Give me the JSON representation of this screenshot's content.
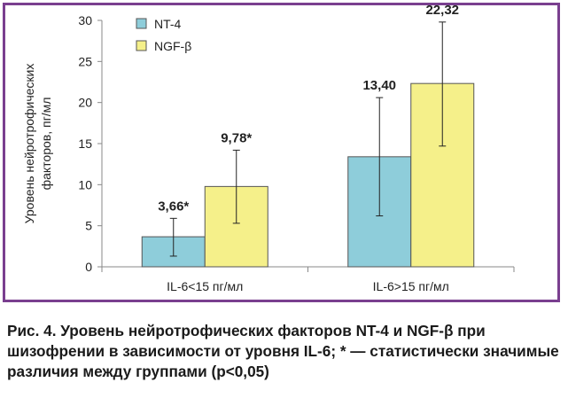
{
  "chart_data": {
    "type": "bar",
    "categories": [
      "IL-6<15 пг/мл",
      "IL-6>15 пг/мл"
    ],
    "series": [
      {
        "name": "NT-4",
        "values": [
          3.66,
          13.4
        ],
        "labels": [
          "3,66*",
          "13,40"
        ],
        "error_low": [
          1.3,
          6.2
        ],
        "error_high": [
          5.9,
          20.6
        ],
        "color": "#8ecdda"
      },
      {
        "name": "NGF-β",
        "values": [
          9.78,
          22.32
        ],
        "labels": [
          "9,78*",
          "22,32"
        ],
        "error_low": [
          5.3,
          14.7
        ],
        "error_high": [
          14.2,
          29.8
        ],
        "color": "#f5f08a"
      }
    ],
    "ylabel": "Уровень нейротрофических факторов, пг/мл",
    "ylabel_lines": [
      "Уровень нейротрофических",
      "факторов, пг/мл"
    ],
    "ylim": [
      0,
      30
    ],
    "yticks": [
      0,
      5,
      10,
      15,
      20,
      25,
      30
    ],
    "grid": false,
    "legend_position": "top-left"
  },
  "caption": "Рис. 4. Уровень нейротрофических факторов NT-4 и NGF-β при шизофрении в зависимости от уровня IL-6; * — статистически значимые различия между группами (p<0,05)",
  "colors": {
    "frame": "#7a3f8f"
  }
}
